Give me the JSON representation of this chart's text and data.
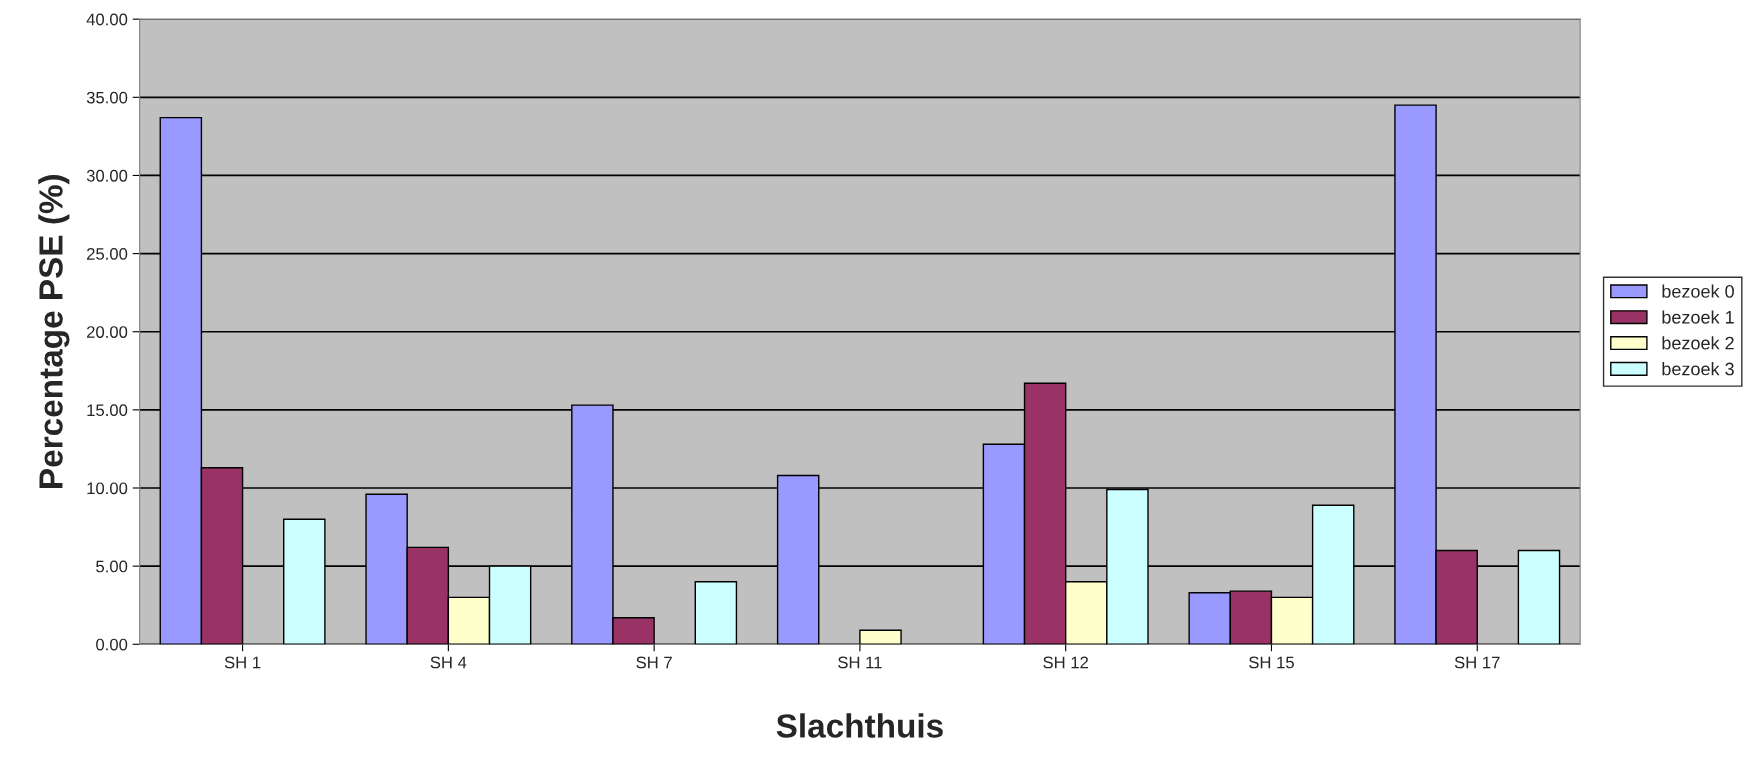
{
  "chart_data": {
    "type": "bar",
    "xlabel": "Slachthuis",
    "ylabel": "Percentage PSE (%)",
    "categories": [
      "SH 1",
      "SH 4",
      "SH 7",
      "SH 11",
      "SH 12",
      "SH 15",
      "SH 17"
    ],
    "series": [
      {
        "name": "bezoek 0",
        "color": "#9999ff",
        "values": [
          33.7,
          9.6,
          15.3,
          10.8,
          12.8,
          3.3,
          34.5
        ]
      },
      {
        "name": "bezoek 1",
        "color": "#993366",
        "values": [
          11.3,
          6.2,
          1.7,
          null,
          16.7,
          3.4,
          6.0
        ]
      },
      {
        "name": "bezoek 2",
        "color": "#ffffcc",
        "values": [
          null,
          3.0,
          null,
          0.9,
          4.0,
          3.0,
          null
        ]
      },
      {
        "name": "bezoek 3",
        "color": "#ccffff",
        "values": [
          8.0,
          5.0,
          4.0,
          null,
          9.9,
          8.9,
          6.0
        ]
      }
    ],
    "ylim": [
      0,
      40
    ],
    "yticks": [
      {
        "value": 0,
        "label": "0.00"
      },
      {
        "value": 5,
        "label": "5.00"
      },
      {
        "value": 10,
        "label": "10.00"
      },
      {
        "value": 15,
        "label": "15.00"
      },
      {
        "value": 20,
        "label": "20.00"
      },
      {
        "value": 25,
        "label": "25.00"
      },
      {
        "value": 30,
        "label": "30.00"
      },
      {
        "value": 35,
        "label": "35.00"
      },
      {
        "value": 40,
        "label": "40.00"
      }
    ],
    "grid": "y",
    "legend": "right"
  }
}
